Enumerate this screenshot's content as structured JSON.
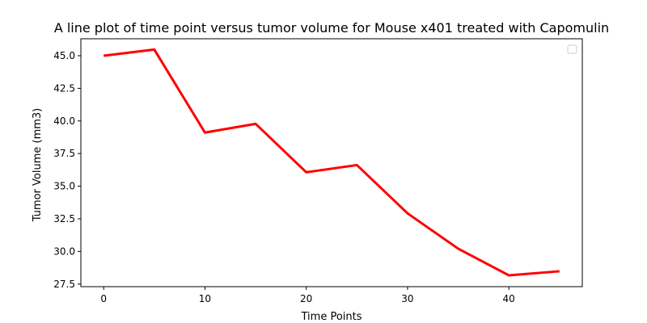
{
  "chart_data": {
    "type": "line",
    "title": "A line plot of time point versus tumor volume for Mouse x401 treated with Capomulin",
    "xlabel": "Time Points",
    "ylabel": "Tumor Volume (mm3)",
    "x": [
      0,
      5,
      10,
      15,
      20,
      25,
      30,
      35,
      40,
      45
    ],
    "series": [
      {
        "values": [
          45.0,
          45.47,
          39.11,
          39.78,
          36.07,
          36.62,
          32.92,
          30.21,
          28.17,
          28.48
        ],
        "color": "#ff0000"
      }
    ],
    "xlim": [
      -2.25,
      47.25
    ],
    "ylim": [
      27.3,
      46.3
    ],
    "xticks": [
      0,
      10,
      20,
      30,
      40
    ],
    "yticks": [
      27.5,
      30.0,
      32.5,
      35.0,
      37.5,
      40.0,
      42.5,
      45.0
    ],
    "grid": false,
    "legend": {
      "position": "upper-right",
      "entries": []
    }
  }
}
